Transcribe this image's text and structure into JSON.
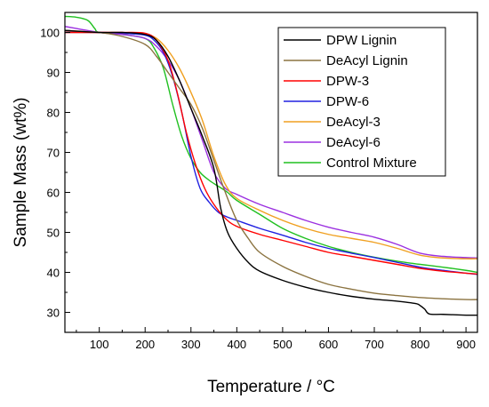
{
  "chart_data": {
    "type": "line",
    "title": "",
    "xlabel": "Temperature / °C",
    "ylabel": "Sample Mass (wt%)",
    "xlim": [
      25,
      925
    ],
    "ylim": [
      25,
      105
    ],
    "xticks": [
      100,
      200,
      300,
      400,
      500,
      600,
      700,
      800,
      900
    ],
    "yticks": [
      30,
      40,
      50,
      60,
      70,
      80,
      90,
      100
    ],
    "legend_position": "top-right",
    "grid": false,
    "series": [
      {
        "name": "DPW Lignin",
        "color": "#000000",
        "x": [
          25,
          100,
          150,
          200,
          225,
          250,
          275,
          300,
          325,
          350,
          365,
          380,
          400,
          425,
          450,
          500,
          550,
          600,
          650,
          700,
          750,
          790,
          800,
          810,
          820,
          850,
          900,
          925
        ],
        "y": [
          100.5,
          100,
          100,
          99.5,
          98,
          94,
          88,
          81,
          74,
          66,
          56,
          50,
          46,
          42.5,
          40.3,
          38,
          36.3,
          35,
          34,
          33.3,
          32.8,
          32.2,
          31.7,
          30.8,
          29.6,
          29.5,
          29.3,
          29.3
        ]
      },
      {
        "name": "DeAcyl Lignin",
        "color": "#8b7340",
        "x": [
          25,
          100,
          150,
          200,
          225,
          250,
          275,
          300,
          325,
          350,
          375,
          400,
          425,
          450,
          500,
          550,
          600,
          650,
          700,
          750,
          800,
          850,
          900,
          925
        ],
        "y": [
          100.5,
          100,
          99,
          97,
          94,
          90,
          86,
          82,
          76,
          68,
          60,
          53,
          48.5,
          45,
          41.5,
          39,
          37,
          35.8,
          34.8,
          34.2,
          33.7,
          33.4,
          33.2,
          33.2
        ]
      },
      {
        "name": "DPW-3",
        "color": "#ff0000",
        "x": [
          25,
          100,
          150,
          200,
          225,
          250,
          270,
          290,
          310,
          330,
          350,
          375,
          400,
          450,
          500,
          550,
          600,
          650,
          700,
          750,
          800,
          850,
          900,
          925
        ],
        "y": [
          100,
          100,
          100,
          99.8,
          98,
          93,
          85,
          75,
          67,
          61,
          57,
          53.5,
          51.5,
          49.5,
          48,
          46.5,
          45,
          44,
          43,
          42,
          41,
          40.3,
          39.8,
          39.6
        ]
      },
      {
        "name": "DPW-6",
        "color": "#2020e0",
        "x": [
          25,
          100,
          150,
          200,
          220,
          240,
          260,
          280,
          300,
          320,
          340,
          360,
          380,
          400,
          450,
          500,
          550,
          600,
          650,
          700,
          750,
          800,
          850,
          900,
          925
        ],
        "y": [
          100,
          100,
          99.8,
          99.3,
          98,
          95,
          89,
          80,
          69,
          61,
          57.5,
          55,
          53.8,
          53,
          51,
          49.3,
          47.5,
          46,
          44.8,
          43.7,
          42.5,
          41.3,
          40.5,
          39.8,
          39.5
        ]
      },
      {
        "name": "DeAcyl-3",
        "color": "#f0a020",
        "x": [
          25,
          100,
          150,
          200,
          225,
          250,
          275,
          300,
          325,
          350,
          375,
          400,
          450,
          500,
          550,
          600,
          650,
          700,
          750,
          800,
          850,
          900,
          925
        ],
        "y": [
          100,
          100,
          99.8,
          99.5,
          98.5,
          95.5,
          91,
          85,
          78,
          69,
          62,
          58.5,
          55.5,
          53,
          51,
          49.5,
          48.5,
          47.5,
          46,
          44.3,
          43.6,
          43.4,
          43.4
        ]
      },
      {
        "name": "DeAcyl-6",
        "color": "#9b30e0",
        "x": [
          25,
          100,
          150,
          200,
          225,
          250,
          275,
          300,
          325,
          350,
          375,
          400,
          450,
          500,
          550,
          600,
          650,
          700,
          750,
          800,
          850,
          900,
          925
        ],
        "y": [
          101.5,
          100,
          99.5,
          98.5,
          96.5,
          93,
          88,
          81,
          73,
          65,
          61,
          59.5,
          57,
          55,
          53,
          51.3,
          50,
          48.8,
          47,
          44.8,
          44,
          43.7,
          43.6
        ]
      },
      {
        "name": "Control Mixture",
        "color": "#20c020",
        "x": [
          25,
          50,
          75,
          90,
          100,
          150,
          200,
          220,
          240,
          260,
          280,
          300,
          320,
          340,
          360,
          380,
          400,
          450,
          500,
          550,
          600,
          650,
          700,
          750,
          800,
          850,
          900,
          925
        ],
        "y": [
          104,
          103.8,
          103,
          101,
          100,
          99.5,
          98.5,
          96,
          91,
          82,
          74,
          68.5,
          65,
          63,
          61.5,
          60,
          58,
          54.5,
          51,
          48.5,
          46.5,
          45,
          43.8,
          42.8,
          42,
          41.3,
          40.5,
          40
        ]
      }
    ]
  }
}
